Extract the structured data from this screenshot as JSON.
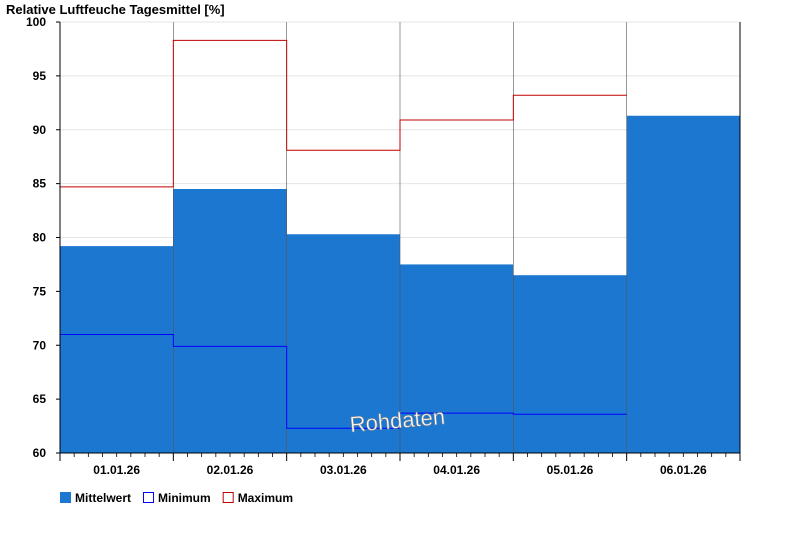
{
  "chart_data": {
    "type": "bar",
    "title": "Relative Luftfeuche Tagesmittel [%]",
    "categories": [
      "01.01.26",
      "02.01.26",
      "03.01.26",
      "04.01.26",
      "05.01.26",
      "06.01.26"
    ],
    "series": [
      {
        "name": "Mittelwert",
        "type": "bar",
        "color": "#1c77d0",
        "values": [
          79.2,
          84.5,
          80.3,
          77.5,
          76.5,
          91.3
        ]
      },
      {
        "name": "Minimum",
        "type": "step",
        "color": "#0000ff",
        "values": [
          71.0,
          69.9,
          62.3,
          63.7,
          63.6,
          null
        ]
      },
      {
        "name": "Maximum",
        "type": "step",
        "color": "#c00000",
        "values": [
          84.7,
          98.3,
          88.1,
          90.9,
          93.2,
          null
        ]
      }
    ],
    "ylim": [
      60,
      100
    ],
    "yticks": [
      60,
      65,
      70,
      75,
      80,
      85,
      90,
      95,
      100
    ],
    "grid": true,
    "legend_position": "bottom-left",
    "annotation": "Rohdaten"
  }
}
